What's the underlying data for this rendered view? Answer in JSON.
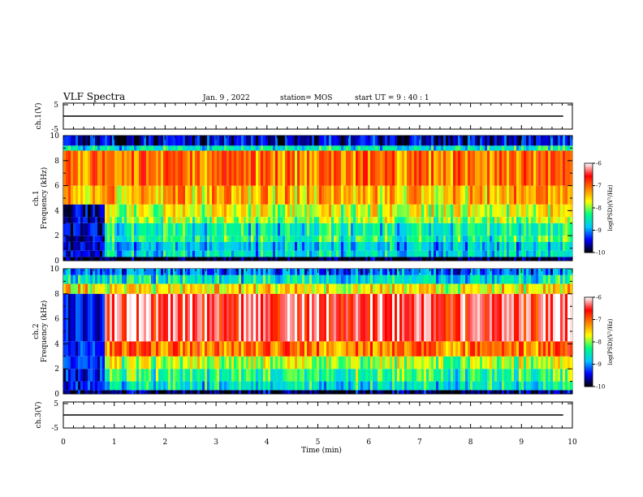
{
  "header": {
    "title": "VLF Spectra",
    "date": "Jan. 9 , 2022",
    "station": "station= MOS",
    "start": "start  UT  =   9 : 40 : 1"
  },
  "chart_data": [
    {
      "type": "line",
      "panel": "ch1-voltage",
      "ylabel": "ch.1(V)",
      "ylim": [
        -5,
        5
      ],
      "yticks": [
        "5",
        "-5"
      ],
      "x": [
        0,
        1,
        2,
        3,
        4,
        5,
        6,
        7,
        8,
        9,
        9.82
      ],
      "values": [
        0,
        0,
        0,
        0,
        0,
        0,
        0,
        0,
        0,
        0,
        0
      ]
    },
    {
      "type": "heatmap",
      "panel": "ch1-spectrogram",
      "ylabel": "ch.1\nFrequency (kHz)",
      "ylim": [
        0,
        10
      ],
      "yticks": [
        "0",
        "2",
        "4",
        "6",
        "8",
        "10"
      ],
      "colorbar": {
        "label": "log(PSD)(V²/Hz)",
        "range": [
          -10,
          -6
        ],
        "ticks": [
          "-6",
          "-7",
          "-8",
          "-9",
          "-10"
        ]
      },
      "bands_khz": [
        {
          "from": 0.0,
          "to": 0.3,
          "level": -10
        },
        {
          "from": 0.3,
          "to": 0.8,
          "level": -8.7
        },
        {
          "from": 0.8,
          "to": 1.5,
          "level": -8.8
        },
        {
          "from": 1.5,
          "to": 2.0,
          "level": -8.4
        },
        {
          "from": 2.0,
          "to": 3.0,
          "level": -8.5
        },
        {
          "from": 3.0,
          "to": 3.5,
          "level": -8.0
        },
        {
          "from": 3.5,
          "to": 4.5,
          "level": -7.8
        },
        {
          "from": 4.5,
          "to": 6.0,
          "level": -7.4
        },
        {
          "from": 6.0,
          "to": 8.8,
          "level": -7.1
        },
        {
          "from": 8.8,
          "to": 9.2,
          "level": -8.6
        },
        {
          "from": 9.2,
          "to": 10.0,
          "level": -9.6
        }
      ],
      "quiet_interval_min": [
        0.0,
        0.8
      ],
      "quiet_level": -9.6
    },
    {
      "type": "heatmap",
      "panel": "ch2-spectrogram",
      "ylabel": "ch.2\nFrequency (kHz)",
      "ylim": [
        0,
        10
      ],
      "yticks": [
        "0",
        "2",
        "4",
        "6",
        "8",
        "10"
      ],
      "colorbar": {
        "label": "log(PSD)(V²/Hz)",
        "range": [
          -10,
          -6
        ],
        "ticks": [
          "-6",
          "-7",
          "-8",
          "-9",
          "-10"
        ]
      },
      "bands_khz": [
        {
          "from": 0.0,
          "to": 0.3,
          "level": -9.8
        },
        {
          "from": 0.3,
          "to": 1.0,
          "level": -8.6
        },
        {
          "from": 1.0,
          "to": 2.0,
          "level": -8.3
        },
        {
          "from": 2.0,
          "to": 3.0,
          "level": -7.9
        },
        {
          "from": 3.0,
          "to": 4.2,
          "level": -7.1
        },
        {
          "from": 4.2,
          "to": 8.0,
          "level": -6.4
        },
        {
          "from": 8.0,
          "to": 8.8,
          "level": -7.6
        },
        {
          "from": 8.8,
          "to": 9.5,
          "level": -8.6
        },
        {
          "from": 9.5,
          "to": 10.0,
          "level": -9.1
        }
      ],
      "quiet_interval_min": [
        0.0,
        0.8
      ],
      "quiet_level": -9.4
    },
    {
      "type": "line",
      "panel": "ch3-voltage",
      "ylabel": "ch.3(V)",
      "ylim": [
        -5,
        5
      ],
      "yticks": [
        "5",
        "-5"
      ],
      "x": [
        0,
        1,
        2,
        3,
        4,
        5,
        6,
        7,
        8,
        9,
        9.82
      ],
      "values": [
        0,
        0,
        0,
        0,
        0,
        0,
        0,
        0,
        0,
        0,
        0
      ]
    }
  ],
  "xaxis": {
    "label": "Time (min)",
    "range": [
      0,
      10
    ],
    "ticks": [
      "0",
      "1",
      "2",
      "3",
      "4",
      "5",
      "6",
      "7",
      "8",
      "9",
      "10"
    ]
  },
  "colors": {
    "scale": [
      "#000000",
      "#0000ff",
      "#00c8ff",
      "#00ff80",
      "#ffff00",
      "#ff8000",
      "#ff0000",
      "#ffffff"
    ]
  }
}
